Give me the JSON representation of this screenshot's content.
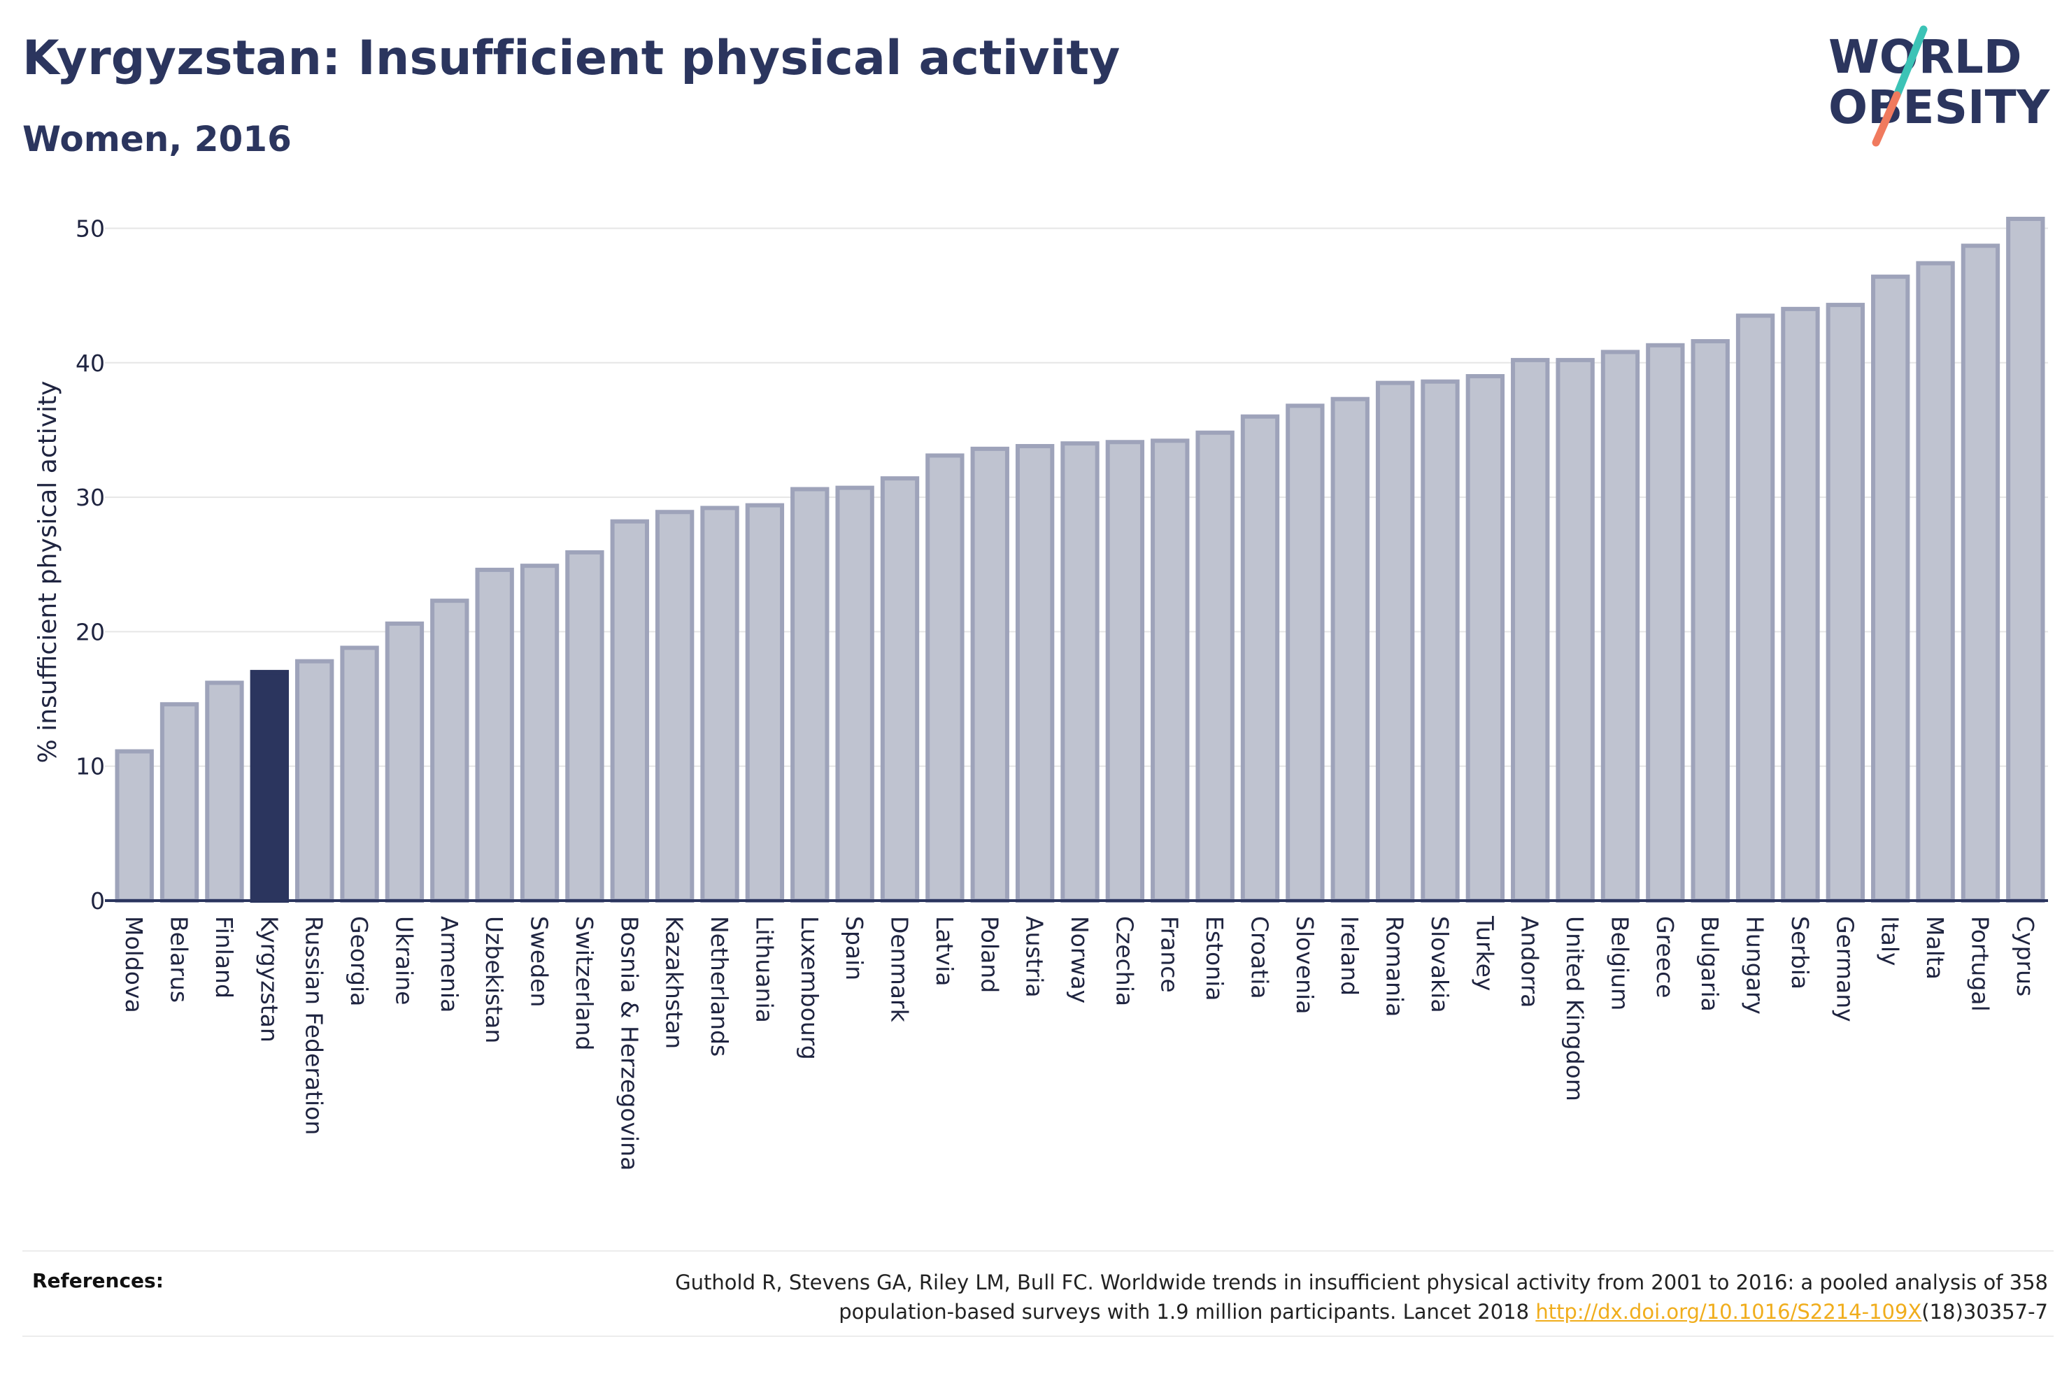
{
  "header": {
    "title": "Kyrgyzstan: Insufficient physical activity",
    "subtitle": "Women, 2016"
  },
  "logo": {
    "line1": "WORLD",
    "line2": "OBESITY",
    "colors": {
      "text": "#2b355e",
      "slash_top": "#3cc3b6",
      "slash_bottom": "#f07a5e"
    }
  },
  "chart_data": {
    "type": "bar",
    "title": "Kyrgyzstan: Insufficient physical activity",
    "subtitle": "Women, 2016",
    "ylabel": "% insufficient physical activity",
    "xlabel": "",
    "ylim": [
      0,
      52
    ],
    "yticks": [
      0,
      10,
      20,
      30,
      40,
      50
    ],
    "grid": true,
    "highlight": "Kyrgyzstan",
    "colors": {
      "bar": "#bfc3d0",
      "bar_edge": "#9ea3ba",
      "highlight": "#2b355e",
      "grid": "#e6e6e6",
      "axis": "#2b355e"
    },
    "categories": [
      "Moldova",
      "Belarus",
      "Finland",
      "Kyrgyzstan",
      "Russian Federation",
      "Georgia",
      "Ukraine",
      "Armenia",
      "Uzbekistan",
      "Sweden",
      "Switzerland",
      "Bosnia & Herzegovina",
      "Kazakhstan",
      "Netherlands",
      "Lithuania",
      "Luxembourg",
      "Spain",
      "Denmark",
      "Latvia",
      "Poland",
      "Austria",
      "Norway",
      "Czechia",
      "France",
      "Estonia",
      "Croatia",
      "Slovenia",
      "Ireland",
      "Romania",
      "Slovakia",
      "Turkey",
      "Andorra",
      "United Kingdom",
      "Belgium",
      "Greece",
      "Bulgaria",
      "Hungary",
      "Serbia",
      "Germany",
      "Italy",
      "Malta",
      "Portugal",
      "Cyprus"
    ],
    "values": [
      11.1,
      14.6,
      16.2,
      17.0,
      17.8,
      18.8,
      20.6,
      22.3,
      24.6,
      24.9,
      25.9,
      28.2,
      28.9,
      29.2,
      29.4,
      30.6,
      30.7,
      31.4,
      33.1,
      33.6,
      33.8,
      34.0,
      34.1,
      34.2,
      34.8,
      36.0,
      36.8,
      37.3,
      38.5,
      38.6,
      39.0,
      40.2,
      40.2,
      40.8,
      41.3,
      41.6,
      43.5,
      44.0,
      44.3,
      46.4,
      47.4,
      48.7,
      50.7
    ]
  },
  "references": {
    "label": "References:",
    "text_line1": "Guthold R, Stevens GA, Riley LM, Bull FC. Worldwide trends in insufficient physical activity from 2001 to 2016: a pooled analysis of 358",
    "text_line2_before": "population-based surveys with 1.9 million participants. Lancet 2018 ",
    "link": "http://dx.doi.org/10.1016/S2214-109X",
    "text_after_link": "(18)30357-7"
  }
}
